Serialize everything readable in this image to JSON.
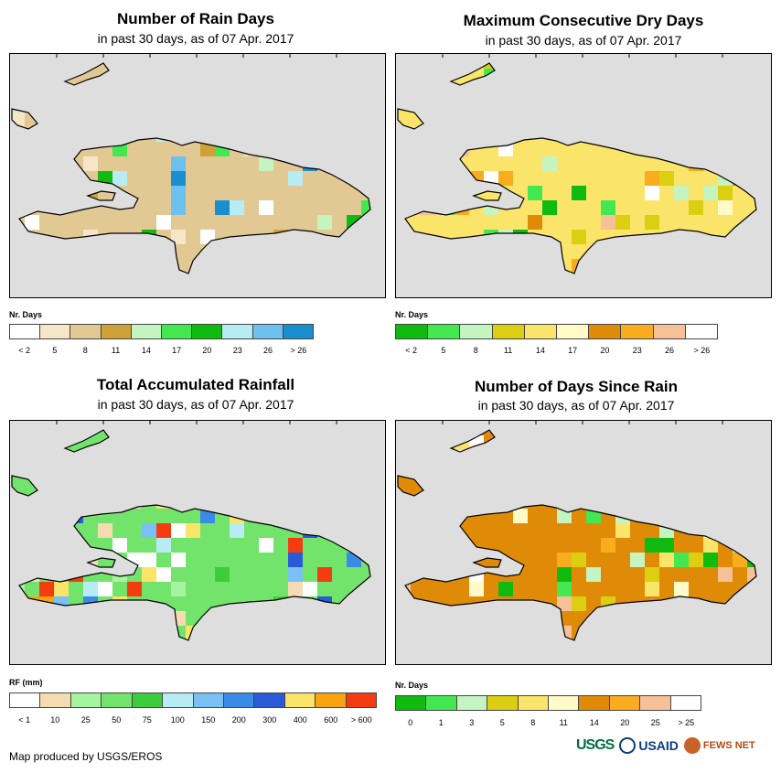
{
  "panels": [
    {
      "title": "Number of Rain Days",
      "subtitle": "in past 30 days, as of 07 Apr. 2017",
      "legend_label": "Nr. Days",
      "legend_colors": [
        "#ffffff",
        "#f6e5c6",
        "#e2c994",
        "#cfa238",
        "#c6f4c0",
        "#43e850",
        "#10bb10",
        "#b8ecf4",
        "#6cc1ee",
        "#1a8fd0"
      ],
      "legend_ticks": [
        "< 2",
        "5",
        "8",
        "11",
        "14",
        "17",
        "20",
        "23",
        "26",
        "> 26"
      ],
      "land_color": "#e2c994"
    },
    {
      "title": "Maximum Consecutive Dry Days",
      "subtitle": "in past 30 days, as of 07 Apr. 2017",
      "legend_label": "Nr. Days",
      "legend_colors": [
        "#10bb10",
        "#43e850",
        "#c6f4c0",
        "#dcce10",
        "#fae46a",
        "#fffac8",
        "#df8b08",
        "#f8ac1e",
        "#f6c198",
        "#ffffff"
      ],
      "legend_ticks": [
        "< 2",
        "5",
        "8",
        "11",
        "14",
        "17",
        "20",
        "23",
        "26",
        "> 26"
      ],
      "land_color": "#fae46a"
    },
    {
      "title": "Total Accumulated Rainfall",
      "subtitle": "in past 30 days, as of 07 Apr. 2017",
      "legend_label": "RF (mm)",
      "legend_colors": [
        "#ffffff",
        "#f4dbb2",
        "#a4f4a0",
        "#72e46c",
        "#3ccc3c",
        "#b8ecf4",
        "#7ac0f4",
        "#3a8ae8",
        "#2a5ad8",
        "#fae46a",
        "#f8a410",
        "#f43c10"
      ],
      "legend_ticks": [
        "< 1",
        "10",
        "25",
        "50",
        "75",
        "100",
        "150",
        "200",
        "300",
        "400",
        "600",
        "> 600"
      ],
      "land_color": "#72e46c"
    },
    {
      "title": "Number of Days Since Rain",
      "subtitle": "in past 30 days, as of 07 Apr. 2017",
      "legend_label": "Nr. Days",
      "legend_colors": [
        "#10bb10",
        "#43e850",
        "#c6f4c0",
        "#dcce10",
        "#fae46a",
        "#fffac8",
        "#df8b08",
        "#f8ac1e",
        "#f6c198",
        "#ffffff"
      ],
      "legend_ticks": [
        "0",
        "1",
        "3",
        "5",
        "8",
        "11",
        "14",
        "20",
        "25",
        "> 25"
      ],
      "land_color": "#df8b08"
    }
  ],
  "footer": {
    "credit": "Map produced by USGS/EROS",
    "logo_usgs": "USGS",
    "logo_usaid": "USAID",
    "logo_fews": "FEWS NET"
  }
}
